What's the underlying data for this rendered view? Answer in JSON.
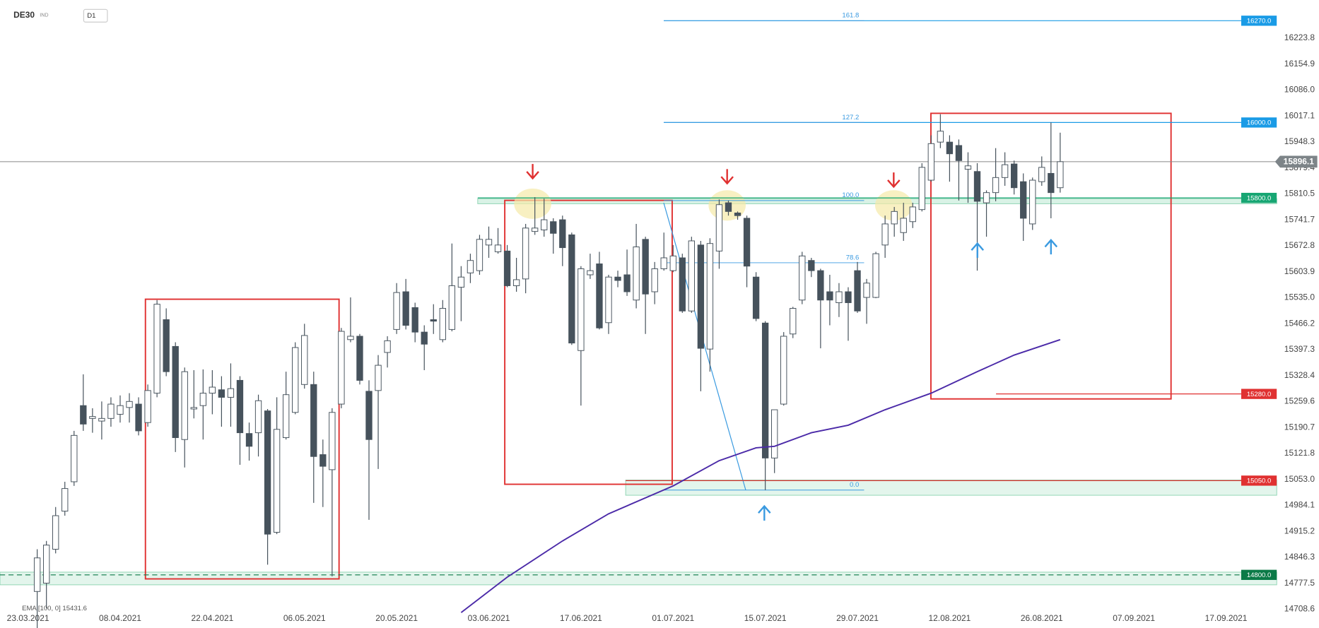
{
  "chart_data": {
    "type": "candlestick",
    "title": "DE30",
    "subtitle": "IND",
    "timeframe": "D1",
    "up_color": "#ffffff",
    "down_color": "#46525c",
    "ylim": [
      14659.3,
      16324.7
    ],
    "yticks": [
      16223.8,
      16154.9,
      {
        "value": 16086.0,
        "label": "16086.0"
      },
      16017.1,
      15948.3,
      15879.4,
      15810.5,
      15741.7,
      15672.8,
      15603.9,
      {
        "value": 15535.0,
        "label": "15535.0"
      },
      15466.2,
      15397.3,
      15328.4,
      15259.6,
      15190.7,
      15121.8,
      {
        "value": 15053.0,
        "label": "15053.0"
      },
      14984.1,
      14915.2,
      14846.3,
      14777.5,
      14708.6
    ],
    "xticks": [
      {
        "value": -1,
        "label": "23.03.2021"
      },
      {
        "value": 9,
        "label": "08.04.2021"
      },
      {
        "value": 19,
        "label": "22.04.2021"
      },
      {
        "value": 29,
        "label": "06.05.2021"
      },
      {
        "value": 39,
        "label": "20.05.2021"
      },
      {
        "value": 49,
        "label": "03.06.2021"
      },
      {
        "value": 59,
        "label": "17.06.2021"
      },
      {
        "value": 69,
        "label": "01.07.2021"
      },
      {
        "value": 79,
        "label": "15.07.2021"
      },
      {
        "value": 89,
        "label": "29.07.2021"
      },
      {
        "value": 99,
        "label": "12.08.2021"
      },
      {
        "value": 109,
        "label": "26.08.2021"
      },
      {
        "value": 119,
        "label": "07.09.2021"
      },
      {
        "value": 129,
        "label": "17.09.2021"
      }
    ],
    "ohlc": [
      [
        14756,
        14868,
        14659,
        14845
      ],
      [
        14778,
        14890,
        14711,
        14879
      ],
      [
        14868,
        14980,
        14857,
        14957
      ],
      [
        14969,
        15047,
        14957,
        15029
      ],
      [
        15047,
        15182,
        15036,
        15170
      ],
      [
        15249,
        15332,
        15182,
        15200
      ],
      [
        15215,
        15242,
        15177,
        15220
      ],
      [
        15208,
        15260,
        15159,
        15215
      ],
      [
        15215,
        15271,
        15193,
        15253
      ],
      [
        15226,
        15276,
        15204,
        15249
      ],
      [
        15244,
        15282,
        15204,
        15260
      ],
      [
        15253,
        15271,
        15170,
        15182
      ],
      [
        15204,
        15305,
        15193,
        15289
      ],
      [
        15282,
        15529,
        15271,
        15518
      ],
      [
        15477,
        15507,
        15327,
        15339
      ],
      [
        15406,
        15417,
        15126,
        15164
      ],
      [
        15159,
        15350,
        15085,
        15339
      ],
      [
        15240,
        15343,
        15215,
        15244
      ],
      [
        15249,
        15345,
        15159,
        15282
      ],
      [
        15282,
        15343,
        15226,
        15298
      ],
      [
        15291,
        15327,
        15193,
        15271
      ],
      [
        15271,
        15361,
        15193,
        15294
      ],
      [
        15316,
        15327,
        15092,
        15177
      ],
      [
        15175,
        15204,
        15103,
        15141
      ],
      [
        15177,
        15278,
        15114,
        15262
      ],
      [
        15235,
        15240,
        14827,
        14908
      ],
      [
        14913,
        15271,
        14908,
        15186
      ],
      [
        15164,
        15339,
        15159,
        15278
      ],
      [
        15231,
        15417,
        15226,
        15403
      ],
      [
        15305,
        15466,
        15294,
        15435
      ],
      [
        15305,
        15339,
        14991,
        15114
      ],
      [
        15119,
        15159,
        14980,
        15088
      ],
      [
        15079,
        15242,
        14796,
        15231
      ],
      [
        15253,
        15455,
        15242,
        15446
      ],
      [
        15424,
        15536,
        15417,
        15433
      ],
      [
        15433,
        15439,
        15305,
        15316
      ],
      [
        15287,
        15316,
        14946,
        15159
      ],
      [
        15289,
        15383,
        15081,
        15356
      ],
      [
        15390,
        15433,
        15350,
        15421
      ],
      [
        15451,
        15574,
        15439,
        15549
      ],
      [
        15551,
        15585,
        15451,
        15462
      ],
      [
        15509,
        15522,
        15417,
        15444
      ],
      [
        15444,
        15462,
        15343,
        15412
      ],
      [
        15477,
        15518,
        15439,
        15473
      ],
      [
        15424,
        15529,
        15417,
        15507
      ],
      [
        15451,
        15679,
        15446,
        15567
      ],
      [
        15563,
        15619,
        15473,
        15590
      ],
      [
        15601,
        15652,
        15574,
        15634
      ],
      [
        15607,
        15702,
        15596,
        15690
      ],
      [
        15675,
        15724,
        15641,
        15690
      ],
      [
        15657,
        15720,
        15652,
        15675
      ],
      [
        15659,
        15675,
        15563,
        15567
      ],
      [
        15567,
        15641,
        15551,
        15583
      ],
      [
        15585,
        15731,
        15547,
        15720
      ],
      [
        15711,
        15802,
        15702,
        15720
      ],
      [
        15715,
        15798,
        15697,
        15742
      ],
      [
        15737,
        15746,
        15652,
        15706
      ],
      [
        15742,
        15753,
        15619,
        15668
      ],
      [
        15702,
        15708,
        15410,
        15415
      ],
      [
        15395,
        15619,
        15249,
        15612
      ],
      [
        15596,
        15652,
        15585,
        15607
      ],
      [
        15625,
        15657,
        15451,
        15455
      ],
      [
        15469,
        15596,
        15439,
        15590
      ],
      [
        15590,
        15607,
        15563,
        15581
      ],
      [
        15596,
        15663,
        15540,
        15551
      ],
      [
        15529,
        15731,
        15507,
        15670
      ],
      [
        15690,
        15697,
        15439,
        15545
      ],
      [
        15551,
        15630,
        15518,
        15612
      ],
      [
        15612,
        15708,
        15607,
        15641
      ],
      [
        15607,
        15675,
        15603,
        15646
      ],
      [
        15641,
        15652,
        15495,
        15500
      ],
      [
        15500,
        15697,
        15495,
        15686
      ],
      [
        15675,
        15686,
        15287,
        15401
      ],
      [
        15399,
        15693,
        15339,
        15679
      ],
      [
        15659,
        15796,
        15612,
        15782
      ],
      [
        15787,
        15793,
        15753,
        15764
      ],
      [
        15760,
        15764,
        15742,
        15753
      ],
      [
        15746,
        15753,
        15563,
        15619
      ],
      [
        15590,
        15603,
        15473,
        15480
      ],
      [
        15468,
        15473,
        15025,
        15110
      ],
      [
        15110,
        15238,
        15070,
        15238
      ],
      [
        15253,
        15444,
        15249,
        15433
      ],
      [
        15439,
        15511,
        15428,
        15507
      ],
      [
        15529,
        15657,
        15518,
        15646
      ],
      [
        15634,
        15641,
        15590,
        15607
      ],
      [
        15607,
        15612,
        15401,
        15529
      ],
      [
        15551,
        15596,
        15462,
        15529
      ],
      [
        15522,
        15574,
        15484,
        15551
      ],
      [
        15551,
        15563,
        15421,
        15522
      ],
      [
        15607,
        15630,
        15495,
        15500
      ],
      [
        15536,
        15585,
        15466,
        15574
      ],
      [
        15536,
        15657,
        15534,
        15652
      ],
      [
        15675,
        15753,
        15641,
        15731
      ],
      [
        15731,
        15776,
        15697,
        15764
      ],
      [
        15708,
        15787,
        15686,
        15746
      ],
      [
        15737,
        15787,
        15720,
        15776
      ],
      [
        15769,
        15892,
        15764,
        15881
      ],
      [
        15847,
        15966,
        15843,
        15944
      ],
      [
        15948,
        16022,
        15932,
        15977
      ],
      [
        15948,
        15966,
        15843,
        15917
      ],
      [
        15939,
        15955,
        15793,
        15899
      ],
      [
        15876,
        15921,
        15787,
        15885
      ],
      [
        15870,
        15892,
        15607,
        15791
      ],
      [
        15787,
        15820,
        15697,
        15814
      ],
      [
        15814,
        15932,
        15791,
        15854
      ],
      [
        15854,
        15921,
        15832,
        15888
      ],
      [
        15890,
        15899,
        15809,
        15827
      ],
      [
        15843,
        15865,
        15686,
        15746
      ],
      [
        15731,
        15854,
        15715,
        15847
      ],
      [
        15843,
        15910,
        15832,
        15881
      ],
      [
        15865,
        16000,
        15746,
        15814
      ],
      [
        15827,
        15973,
        15814,
        15896.1
      ]
    ],
    "ema": {
      "name": "EMA [100, 0] 15431.6",
      "color": "#4b2aa8",
      "x": [
        46,
        51,
        57,
        62,
        69,
        74,
        78,
        80,
        84,
        88,
        92,
        97,
        102,
        106,
        111
      ],
      "values": [
        14700,
        14794,
        14890,
        14962,
        15036,
        15103,
        15137,
        15141,
        15177,
        15197,
        15238,
        15282,
        15339,
        15383,
        15424
      ]
    },
    "levels": [
      {
        "value": 16270,
        "label": "16270.0",
        "color": "#1a9be6"
      },
      {
        "value": 16000,
        "label": "16000.0",
        "color": "#1a9be6"
      },
      {
        "value": 15800,
        "label": "15800.0",
        "color": "#17a673"
      },
      {
        "value": 15280,
        "label": "15280.0",
        "color": "#e03131"
      },
      {
        "value": 15050,
        "label": "15050.0",
        "color": "#e03131"
      },
      {
        "value": 14800,
        "label": "14800.0",
        "color": "#0b7a47"
      }
    ],
    "fibonacci": [
      {
        "value": 16270,
        "label": "161.8"
      },
      {
        "value": 16000,
        "label": "127.2"
      },
      {
        "value": 15793,
        "label": "100.0"
      },
      {
        "value": 15628,
        "label": "78.6"
      },
      {
        "value": 15025,
        "label": "0.0"
      }
    ],
    "last_price": 15896.1
  }
}
